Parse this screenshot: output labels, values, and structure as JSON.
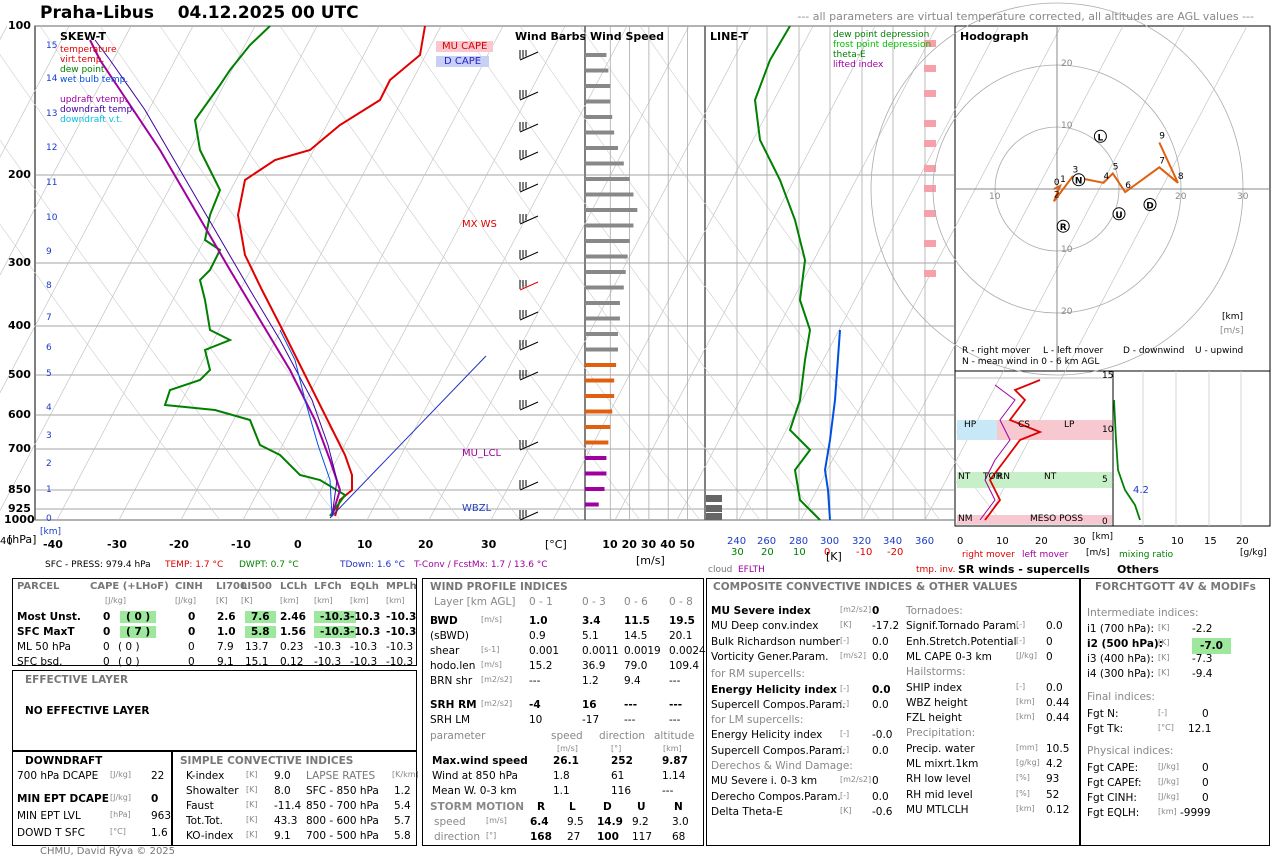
{
  "header": {
    "station": "Praha-Libus",
    "datetime": "04.12.2025 00 UTC",
    "note": "--- all parameters are virtual temperature corrected, all altitudes are AGL values ---"
  },
  "skewt": {
    "title": "SKEW-T",
    "pressure_ticks": [
      "100",
      "200",
      "300",
      "400",
      "500",
      "600",
      "700",
      "850",
      "925",
      "1000"
    ],
    "height_ticks": [
      "15",
      "14",
      "13",
      "12",
      "11",
      "10",
      "9",
      "8",
      "7",
      "6",
      "5",
      "4",
      "3",
      "2",
      "1",
      "0"
    ],
    "temp_ticks": [
      "-40",
      "-30",
      "-20",
      "-10",
      "0",
      "10",
      "20",
      "30"
    ],
    "unit_t": "[°C]",
    "unit_km": "[km]",
    "unit_hpa": "[hPa]",
    "legend": [
      {
        "t": "temperature",
        "c": "#e00000"
      },
      {
        "t": "virt.temp.",
        "c": "#e00000"
      },
      {
        "t": "dew point",
        "c": "#008000"
      },
      {
        "t": "wet bulb temp.",
        "c": "#0050e0"
      },
      {
        "t": "",
        "c": "#000"
      },
      {
        "t": "updraft vtemp.",
        "c": "#a000a0"
      },
      {
        "t": "downdraft temp.",
        "c": "#4000a0"
      },
      {
        "t": "downdraft v.t.",
        "c": "#00c0e0"
      }
    ],
    "cape_labels": [
      "MU CAPE",
      "D CAPE"
    ],
    "mu_lcl": "MU_LCL",
    "wbzl": "WBZL",
    "mxws": "MX WS",
    "footer": {
      "sfc": "SFC - PRESS: 979.4 hPa",
      "temp": "TEMP: 1.7 °C",
      "dwpt": "DWPT: 0.7 °C",
      "tdown": "TDown: 1.6 °C",
      "tconv": "T-Conv / FcstMx: 1.7 / 13.6 °C"
    }
  },
  "chart_data": [
    {
      "type": "line",
      "title": "Wind Speed",
      "xlabel": "[m/s]",
      "ticks": [
        "10",
        "20",
        "30",
        "40",
        "50"
      ],
      "xlim": [
        0,
        55
      ],
      "heights_km": [
        0.5,
        1,
        1.5,
        2,
        2.5,
        3,
        3.5,
        4,
        4.5,
        5,
        5.5,
        6,
        6.5,
        7,
        7.5,
        8,
        8.5,
        9,
        9.5,
        10,
        10.5,
        11,
        11.5,
        12,
        12.5,
        13,
        13.5,
        14,
        14.5,
        15
      ],
      "values": [
        4,
        7,
        8,
        8,
        9,
        10,
        11,
        12,
        12,
        13,
        14,
        14,
        15,
        15,
        17,
        18,
        19,
        20,
        22,
        24,
        22,
        20,
        17,
        14,
        12,
        11,
        10,
        10,
        9,
        8
      ]
    },
    {
      "type": "line",
      "title": "LINE-T",
      "xlabel": "[K]",
      "ticks_top": [
        "240",
        "260",
        "280",
        "300",
        "320",
        "340",
        "360"
      ],
      "ticks_bottom": [
        "30",
        "20",
        "10",
        "0",
        "-10",
        "-20"
      ],
      "legend": [
        "dew point depression",
        "frost point depression",
        "theta-E",
        "lifted index"
      ],
      "sub_labels": [
        "cloud",
        "EFLTH",
        "tmp. inv."
      ]
    },
    {
      "type": "scatter",
      "title": "Hodograph",
      "unit": "[km]",
      "unit2": "[m/s]",
      "rings": [
        10,
        20,
        30
      ],
      "points": [
        {
          "label": "0",
          "u": -0.5,
          "v": 0
        },
        {
          "label": "1",
          "u": 0.5,
          "v": 0.5
        },
        {
          "label": "2",
          "u": -0.5,
          "v": -2
        },
        {
          "label": "3",
          "u": 2.5,
          "v": 2
        },
        {
          "label": "4",
          "u": 7.5,
          "v": 1
        },
        {
          "label": "5",
          "u": 9,
          "v": 2.5
        },
        {
          "label": "6",
          "u": 11,
          "v": -0.5
        },
        {
          "label": "7",
          "u": 16.5,
          "v": 3.5
        },
        {
          "label": "8",
          "u": 19.5,
          "v": 1
        },
        {
          "label": "9",
          "u": 16.5,
          "v": 7.5
        }
      ],
      "markers": [
        {
          "label": "L",
          "u": 7,
          "v": 8.5
        },
        {
          "label": "N",
          "u": 3.5,
          "v": 1.5
        },
        {
          "label": "R",
          "u": 1,
          "v": -6
        },
        {
          "label": "U",
          "u": 10,
          "v": -4
        },
        {
          "label": "D",
          "u": 15,
          "v": -2.5
        }
      ],
      "legend": [
        "R - right mover",
        "L - left mover",
        "D - downwind",
        "U - upwind",
        "N - mean wind in 0 - 6 km AGL"
      ]
    },
    {
      "type": "line",
      "title": "SR winds - supercells",
      "yticks": [
        "15",
        "10",
        "5",
        "0"
      ],
      "xticks": [
        "0",
        "10",
        "20",
        "30",
        "40"
      ],
      "xlabel": "[m/s]",
      "ylabel": "[km]",
      "bands": [
        "HP",
        "CS",
        "LP",
        "NT",
        "TOR",
        "RN",
        "NT",
        "NM",
        "MESO POSS"
      ],
      "legend": [
        "right mover",
        "left mover"
      ]
    },
    {
      "type": "line",
      "title": "Others",
      "xticks": [
        "5",
        "10",
        "15",
        "20"
      ],
      "xlabel": "[g/kg]",
      "legend": "mixing ratio",
      "label": "4.2"
    }
  ],
  "parcel": {
    "header": [
      "PARCEL",
      "CAPE (+LHoF)",
      "CINH",
      "LI700",
      "LI500",
      "LCLh",
      "LFCh",
      "EQLh",
      "MPLh"
    ],
    "units": [
      "",
      "[J/kg]",
      "[J/kg]",
      "[K]",
      "[K]",
      "[km]",
      "[km]",
      "[km]",
      "[km]"
    ],
    "rows": [
      [
        "Most Unst.",
        "0",
        "( 0 )",
        "0",
        "2.6",
        "7.6",
        "2.46",
        "-10.3",
        "-10.3",
        "-10.3"
      ],
      [
        "SFC MaxT",
        "0",
        "( 7 )",
        "0",
        "1.0",
        "5.8",
        "1.56",
        "-10.3",
        "-10.3",
        "-10.3"
      ],
      [
        "ML 50 hPa",
        "0",
        "( 0 )",
        "0",
        "7.9",
        "13.7",
        "0.23",
        "-10.3",
        "-10.3",
        "-10.3"
      ],
      [
        "SFC bsd.",
        "0",
        "( 0 )",
        "0",
        "9.1",
        "15.1",
        "0.12",
        "-10.3",
        "-10.3",
        "-10.3"
      ]
    ]
  },
  "effective": {
    "title": "EFFECTIVE LAYER",
    "text": "NO EFFECTIVE LAYER"
  },
  "downdraft": {
    "title": "DOWNDRAFT",
    "rows": [
      [
        "700 hPa DCAPE",
        "[J/kg]",
        "22"
      ],
      [
        "MIN EPT DCAPE",
        "[J/kg]",
        "0"
      ],
      [
        "MIN EPT LVL",
        "[hPa]",
        "963"
      ],
      [
        "DOWD T SFC",
        "[°C]",
        "1.6"
      ]
    ]
  },
  "simple": {
    "title": "SIMPLE CONVECTIVE INDICES",
    "rows": [
      [
        "K-index",
        "[K]",
        "9.0"
      ],
      [
        "Showalter",
        "[K]",
        "8.0"
      ],
      [
        "Faust",
        "[K]",
        "-11.4"
      ],
      [
        "Tot.Tot.",
        "[K]",
        "43.3"
      ],
      [
        "KO-index",
        "[K]",
        "9.1"
      ]
    ],
    "lapse_title": "LAPSE RATES",
    "lapse_unit": "[K/km]",
    "lapse": [
      [
        "SFC - 850 hPa",
        "1.2"
      ],
      [
        "850 - 700 hPa",
        "5.4"
      ],
      [
        "800 - 600 hPa",
        "5.7"
      ],
      [
        "700 - 500 hPa",
        "5.8"
      ]
    ]
  },
  "wind": {
    "title": "WIND PROFILE INDICES",
    "layer": "Layer [km AGL]",
    "cols": [
      "0 - 1",
      "0 - 3",
      "0 - 6",
      "0 - 8"
    ],
    "rows": [
      [
        "BWD",
        "[m/s]",
        "1.0",
        "3.4",
        "11.5",
        "19.5"
      ],
      [
        "(sBWD)",
        "",
        "0.9",
        "5.1",
        "14.5",
        "20.1"
      ],
      [
        "shear",
        "[s-1]",
        "0.001",
        "0.0011",
        "0.0019",
        "0.0024"
      ],
      [
        "hodo.len",
        "[m/s]",
        "15.2",
        "36.9",
        "79.0",
        "109.4"
      ],
      [
        "BRN shr",
        "[m2/s2]",
        "---",
        "1.2",
        "9.4",
        "---"
      ],
      [
        "SRH RM",
        "[m2/s2]",
        "-4",
        "16",
        "---",
        "---"
      ],
      [
        "SRH LM",
        "",
        "10",
        "-17",
        "---",
        "---"
      ]
    ],
    "param_head": [
      "parameter",
      "speed",
      "direction",
      "altitude"
    ],
    "param_units": [
      "[m/s]",
      "[°]",
      "[km]"
    ],
    "params": [
      [
        "Max.wind speed",
        "26.1",
        "252",
        "9.87"
      ],
      [
        "Wind at 850 hPa",
        "1.8",
        "61",
        "1.14"
      ],
      [
        "Mean W. 0-3 km",
        "1.1",
        "116",
        "---"
      ]
    ],
    "storm_title": "STORM MOTION",
    "storm_cols": [
      "R",
      "L",
      "D",
      "U",
      "N"
    ],
    "storm_rows": [
      [
        "speed",
        "[m/s]",
        "6.4",
        "9.5",
        "14.9",
        "9.2",
        "3.0"
      ],
      [
        "direction",
        "[°]",
        "168",
        "27",
        "100",
        "117",
        "68"
      ]
    ]
  },
  "composite": {
    "title": "COMPOSITE CONVECTIVE INDICES & OTHER VALUES",
    "left": [
      [
        "MU Severe index",
        "[m2/s2]",
        "0",
        true
      ],
      [
        "MU Deep conv.index",
        "[K]",
        "-17.2",
        false
      ],
      [
        "Bulk Richardson number",
        "[-]",
        "0.0",
        false
      ],
      [
        "Vorticity Gener.Param.",
        "[m/s2]",
        "0.0",
        false
      ],
      [
        "for RM supercells:",
        "",
        "",
        false
      ],
      [
        "Energy Helicity index",
        "[-]",
        "0.0",
        true
      ],
      [
        "Supercell Compos.Param.",
        "[-]",
        "0.0",
        false
      ],
      [
        "for LM supercells:",
        "",
        "",
        false
      ],
      [
        "Energy Helicity index",
        "[-]",
        "-0.0",
        false
      ],
      [
        "Supercell Compos.Param.",
        "[-]",
        "0.0",
        false
      ],
      [
        "Derechos & Wind Damage:",
        "",
        "",
        false
      ],
      [
        "MU Severe i. 0-3 km",
        "[m2/s2]",
        "0",
        false
      ],
      [
        "Derecho Compos.Param.",
        "[-]",
        "0.0",
        false
      ],
      [
        "Delta Theta-E",
        "[K]",
        "-0.6",
        false
      ]
    ],
    "right": [
      [
        "Tornadoes:",
        "",
        "",
        false
      ],
      [
        "Signif.Tornado Param.",
        "[-]",
        "0.0",
        false
      ],
      [
        "Enh.Stretch.Potential",
        "[-]",
        "0",
        false
      ],
      [
        "ML CAPE 0-3 km",
        "[J/kg]",
        "0",
        false
      ],
      [
        "Hailstorms:",
        "",
        "",
        false
      ],
      [
        "SHIP index",
        "[-]",
        "0.0",
        false
      ],
      [
        "WBZ height",
        "[km]",
        "0.44",
        false
      ],
      [
        "FZL height",
        "[km]",
        "0.44",
        false
      ],
      [
        "Precipitation:",
        "",
        "",
        false
      ],
      [
        "Precip. water",
        "[mm]",
        "10.5",
        false
      ],
      [
        "ML mixrt.1km",
        "[g/kg]",
        "4.2",
        false
      ],
      [
        "RH low level",
        "[%]",
        "93",
        false
      ],
      [
        "RH mid level",
        "[%]",
        "52",
        false
      ],
      [
        "MU MTLCLH",
        "[km]",
        "0.12",
        false
      ]
    ]
  },
  "forchtgott": {
    "title": "FORCHTGOTT 4V & MODIFs",
    "inter": "Intermediate indices:",
    "rows_i": [
      [
        "i1 (700 hPa):",
        "[K]",
        "-2.2"
      ],
      [
        "i2 (500 hPa):",
        "[K]",
        "-7.0"
      ],
      [
        "i3 (400 hPa):",
        "[K]",
        "-7.3"
      ],
      [
        "i4 (300 hPa):",
        "[K]",
        "-9.4"
      ]
    ],
    "final": "Final indices:",
    "rows_f": [
      [
        "Fgt N:",
        "[-]",
        "0"
      ],
      [
        "Fgt Tk:",
        "[°C]",
        "12.1"
      ]
    ],
    "phys": "Physical indices:",
    "rows_p": [
      [
        "Fgt CAPE:",
        "[J/kg]",
        "0"
      ],
      [
        "Fgt CAPEf:",
        "[J/kg]",
        "0"
      ],
      [
        "Fgt CINH:",
        "[J/kg]",
        "0"
      ],
      [
        "Fgt EQLH:",
        "[km]",
        "-9999"
      ]
    ]
  },
  "footer": "CHMU, David Rýva © 2025"
}
